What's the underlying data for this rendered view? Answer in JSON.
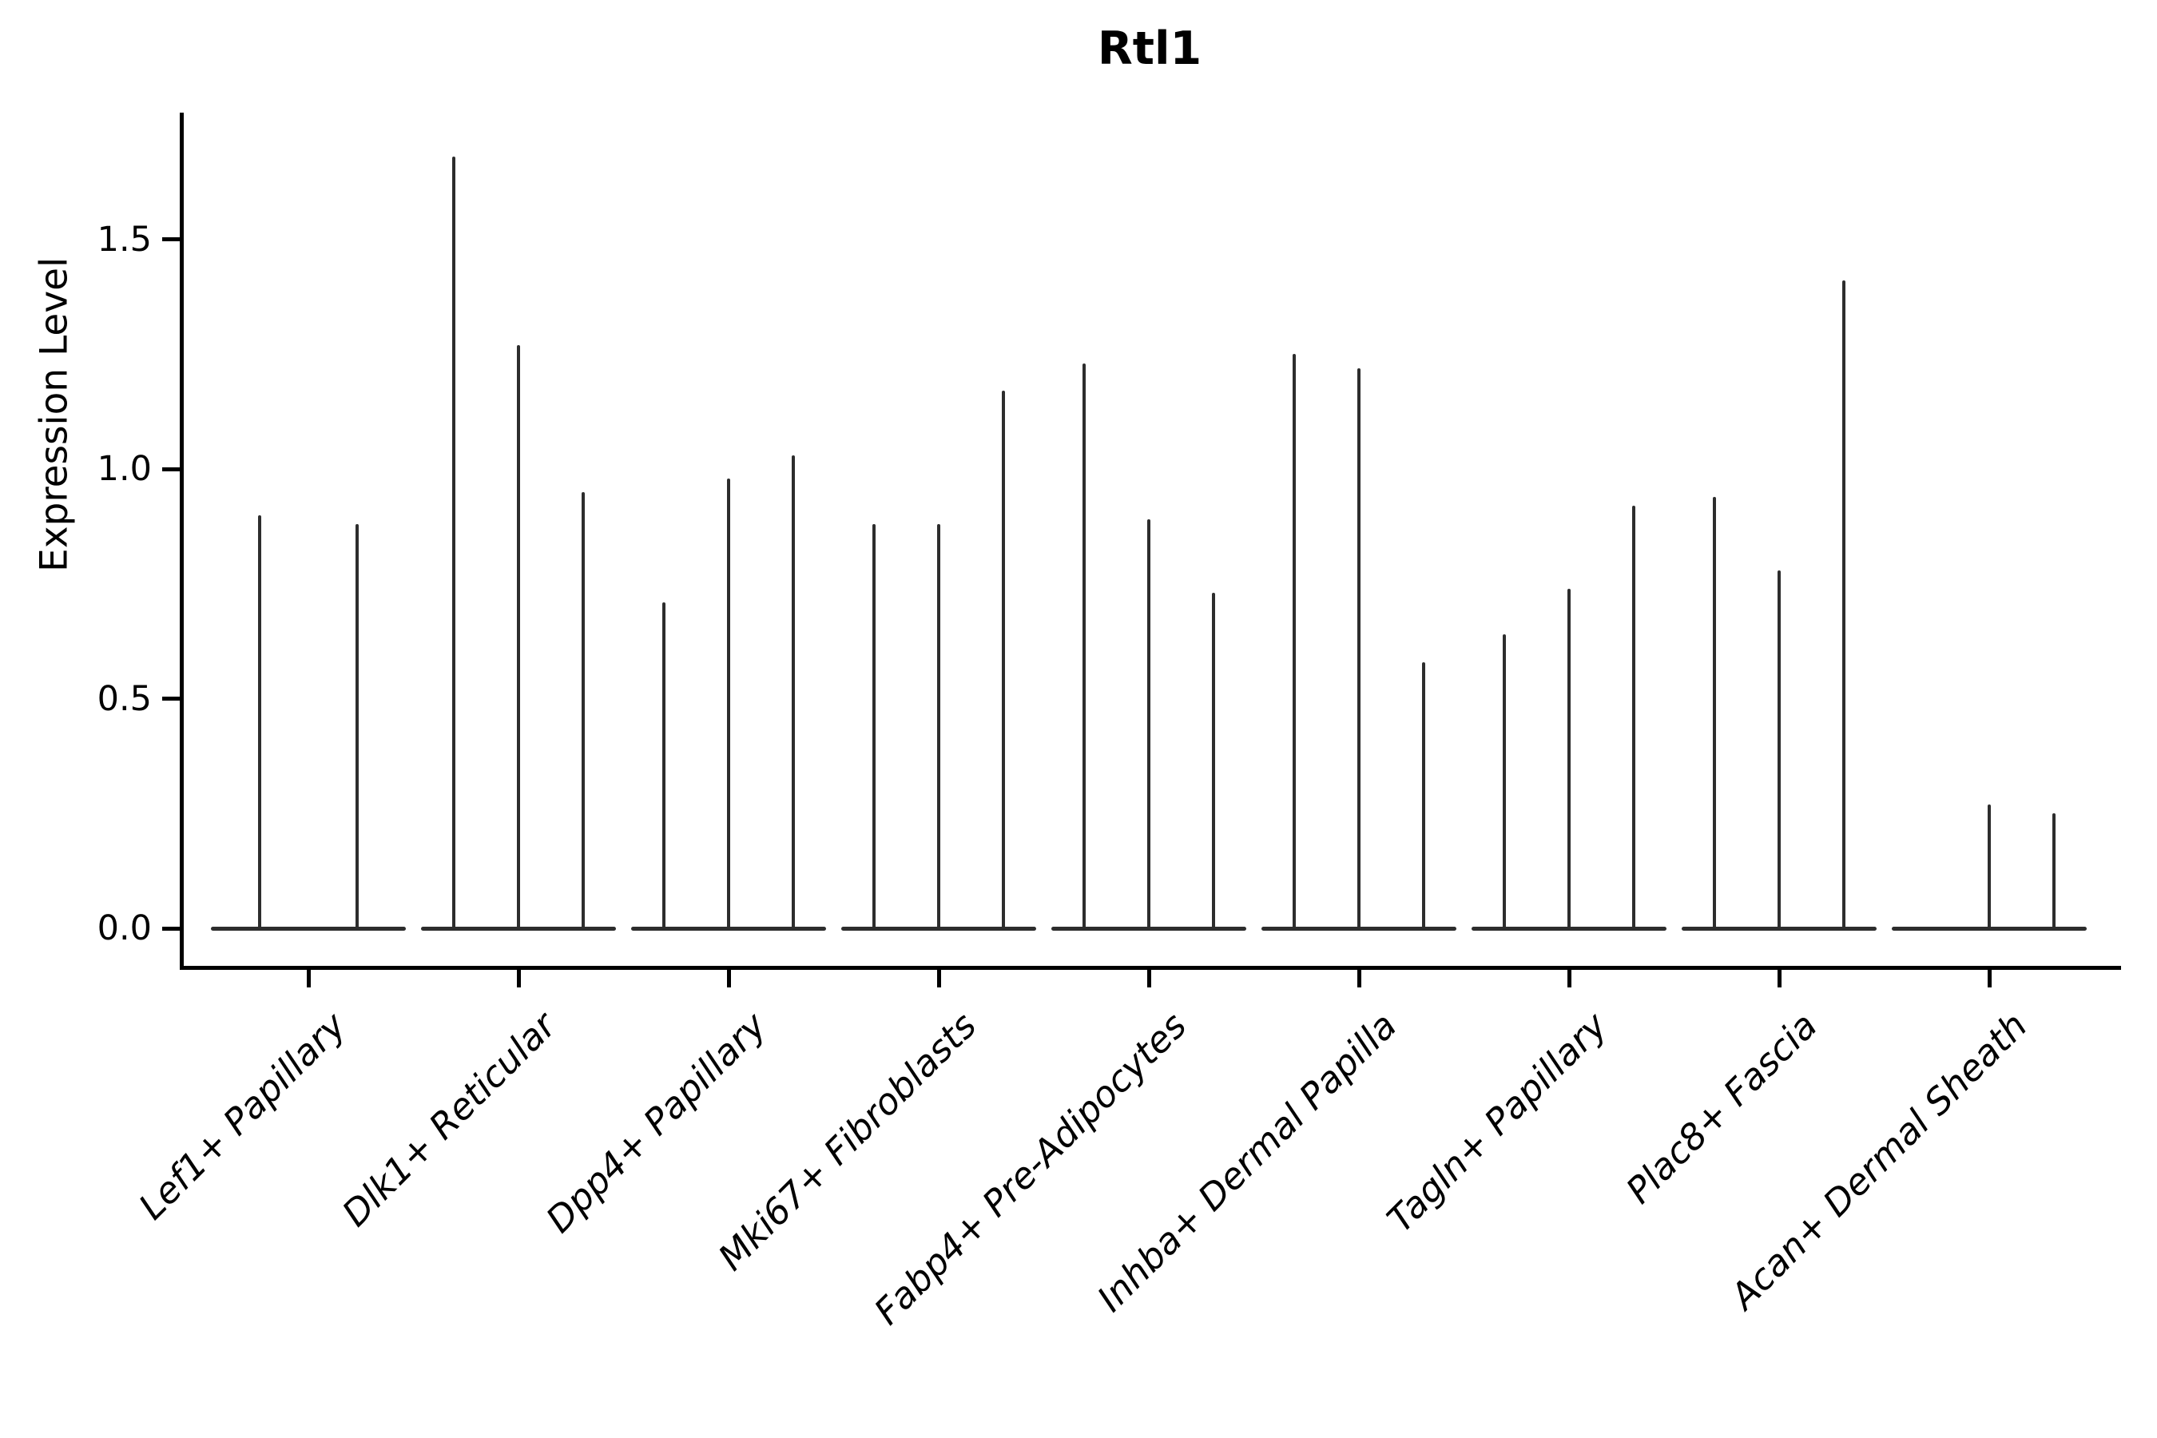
{
  "figure": {
    "title": "Rtl1",
    "y_axis": {
      "label": "Expression Level",
      "ticks": [
        {
          "value": 0.0,
          "label": "0.0"
        },
        {
          "value": 0.5,
          "label": "0.5"
        },
        {
          "value": 1.0,
          "label": "1.0"
        },
        {
          "value": 1.5,
          "label": "1.5"
        }
      ]
    }
  },
  "chart_data": {
    "type": "violin",
    "title": "Rtl1",
    "xlabel": "",
    "ylabel": "Expression Level",
    "ylim": [
      -0.085,
      1.78
    ],
    "yticks": [
      0.0,
      0.5,
      1.0,
      1.5
    ],
    "grid": false,
    "legend": null,
    "line_color": "#2d2d2d",
    "axis_color": "#000000",
    "shape_note": "each violin is collapsed: wide flat base at expression 0 plus a thin vertical tail reaching its maximum value",
    "categories": [
      "Lef1+ Papillary",
      "Dlk1+ Reticular",
      "Dpp4+ Papillary",
      "Mki67+ Fibroblasts",
      "Fabp4+ Pre-Adipocytes",
      "Inhba+ Dermal Papilla",
      "Tagln+ Papillary",
      "Plac8+ Fascia",
      "Acan+ Dermal Sheath"
    ],
    "groups": [
      {
        "category": "Lef1+ Papillary",
        "violin_peaks": [
          0.9,
          0.88
        ]
      },
      {
        "category": "Dlk1+ Reticular",
        "violin_peaks": [
          1.68,
          1.27,
          0.95
        ]
      },
      {
        "category": "Dpp4+ Papillary",
        "violin_peaks": [
          0.71,
          0.98,
          1.03
        ]
      },
      {
        "category": "Mki67+ Fibroblasts",
        "violin_peaks": [
          0.88,
          0.88,
          1.17
        ]
      },
      {
        "category": "Fabp4+ Pre-Adipocytes",
        "violin_peaks": [
          1.23,
          0.89,
          0.73
        ]
      },
      {
        "category": "Inhba+ Dermal Papilla",
        "violin_peaks": [
          1.25,
          1.22,
          0.58
        ]
      },
      {
        "category": "Tagln+ Papillary",
        "violin_peaks": [
          0.64,
          0.74,
          0.92
        ]
      },
      {
        "category": "Plac8+ Fascia",
        "violin_peaks": [
          0.94,
          0.78,
          1.41
        ]
      },
      {
        "category": "Acan+ Dermal Sheath",
        "violin_peaks": [
          0.0,
          0.27,
          0.25
        ]
      }
    ]
  }
}
